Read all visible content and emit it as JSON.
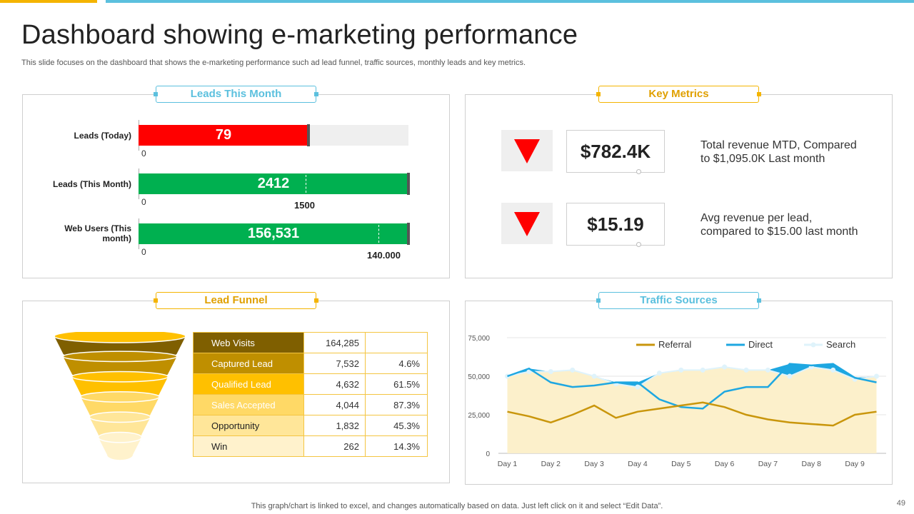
{
  "header": {
    "title": "Dashboard showing e-marketing performance",
    "subtitle": "This slide focuses on the dashboard that shows the e-marketing performance such ad lead funnel, traffic sources, monthly leads and key metrics."
  },
  "panels": {
    "leads": "Leads This Month",
    "metrics": "Key Metrics",
    "funnel": "Lead Funnel",
    "traffic": "Traffic Sources"
  },
  "colors": {
    "red": "#ff0000",
    "green": "#00b050",
    "gold": "#f4b400",
    "blue": "#5bc0de",
    "referral": "#c9960c",
    "direct": "#1ea7e1",
    "search_fill": "#fcefc8"
  },
  "leads": [
    {
      "label": "Leads (Today)",
      "value_text": "79",
      "zero": "0",
      "color": "#ff0000",
      "fill": 0.63,
      "has_bg": true,
      "target_text": ""
    },
    {
      "label": "Leads (This Month)",
      "value_text": "2412",
      "zero": "0",
      "color": "#00b050",
      "fill": 1.0,
      "has_bg": false,
      "target_text": "1500",
      "target": 0.62
    },
    {
      "label_lines": [
        "Web Users (This",
        "month)"
      ],
      "value_text": "156,531",
      "zero": "0",
      "color": "#00b050",
      "fill": 1.0,
      "has_bg": false,
      "target_text": "140.000",
      "target": 0.89
    }
  ],
  "metrics": [
    {
      "value": "$782.4K",
      "desc_lines": [
        "Total revenue MTD, Compared",
        "to $1,095.0K Last month"
      ]
    },
    {
      "value": "$15.19",
      "desc_lines": [
        "Avg revenue per lead,",
        "compared to $15.00 last month"
      ]
    }
  ],
  "funnel": [
    {
      "stage": "Web Visits",
      "count": "164,285",
      "pct": "",
      "color": "#7f5f00",
      "text_color": "#ffffff"
    },
    {
      "stage": "Captured Lead",
      "count": "7,532",
      "pct": "4.6%",
      "color": "#bf8f00",
      "text_color": "#ffffff"
    },
    {
      "stage": "Qualified Lead",
      "count": "4,632",
      "pct": "61.5%",
      "color": "#ffc000",
      "text_color": "#ffffff"
    },
    {
      "stage": "Sales Accepted",
      "count": "4,044",
      "pct": "87.3%",
      "color": "#ffd966",
      "text_color": "#ffffff"
    },
    {
      "stage": "Opportunity",
      "count": "1,832",
      "pct": "45.3%",
      "color": "#ffe699",
      "text_color": "#222222"
    },
    {
      "stage": "Win",
      "count": "262",
      "pct": "14.3%",
      "color": "#fff2cc",
      "text_color": "#222222"
    }
  ],
  "chart_data": {
    "type": "line",
    "title": "Traffic Sources",
    "categories": [
      "Day 1",
      "Day 2",
      "Day 3",
      "Day 4",
      "Day 5",
      "Day 6",
      "Day 7",
      "Day 8",
      "Day 9"
    ],
    "x": [
      1,
      1.5,
      2,
      2.5,
      3,
      3.5,
      4,
      4.5,
      5,
      5.5,
      6,
      6.5,
      7,
      7.5,
      8,
      8.5,
      9,
      9.5
    ],
    "ylim": [
      0,
      75000
    ],
    "yticks": [
      0,
      25000,
      50000,
      75000
    ],
    "ytick_labels": [
      "0",
      "25,000",
      "50,000",
      "75,000"
    ],
    "legend_position": "top-right",
    "series": [
      {
        "name": "Referral",
        "type": "line",
        "color": "#c9960c",
        "values": [
          27000,
          24000,
          20000,
          25000,
          31000,
          23000,
          27000,
          29000,
          31000,
          33000,
          30000,
          25000,
          22000,
          20000,
          19000,
          18000,
          25000,
          27000
        ]
      },
      {
        "name": "Direct",
        "type": "area-line",
        "color": "#1ea7e1",
        "values": [
          50000,
          55000,
          46000,
          43000,
          44000,
          46000,
          46000,
          35000,
          30000,
          29000,
          40000,
          43000,
          43000,
          58000,
          57000,
          58000,
          49000,
          46000
        ]
      },
      {
        "name": "Search",
        "type": "area",
        "color": "#fcefc8",
        "values": [
          50000,
          53000,
          53000,
          54000,
          50000,
          45000,
          43000,
          52000,
          54000,
          54000,
          56000,
          54000,
          54000,
          50000,
          56000,
          54000,
          48000,
          50000
        ]
      }
    ]
  },
  "footer": {
    "note": "This graph/chart is linked to excel,  and changes automatically based on data. Just left click on it and select “Edit Data”.",
    "page": "49"
  }
}
